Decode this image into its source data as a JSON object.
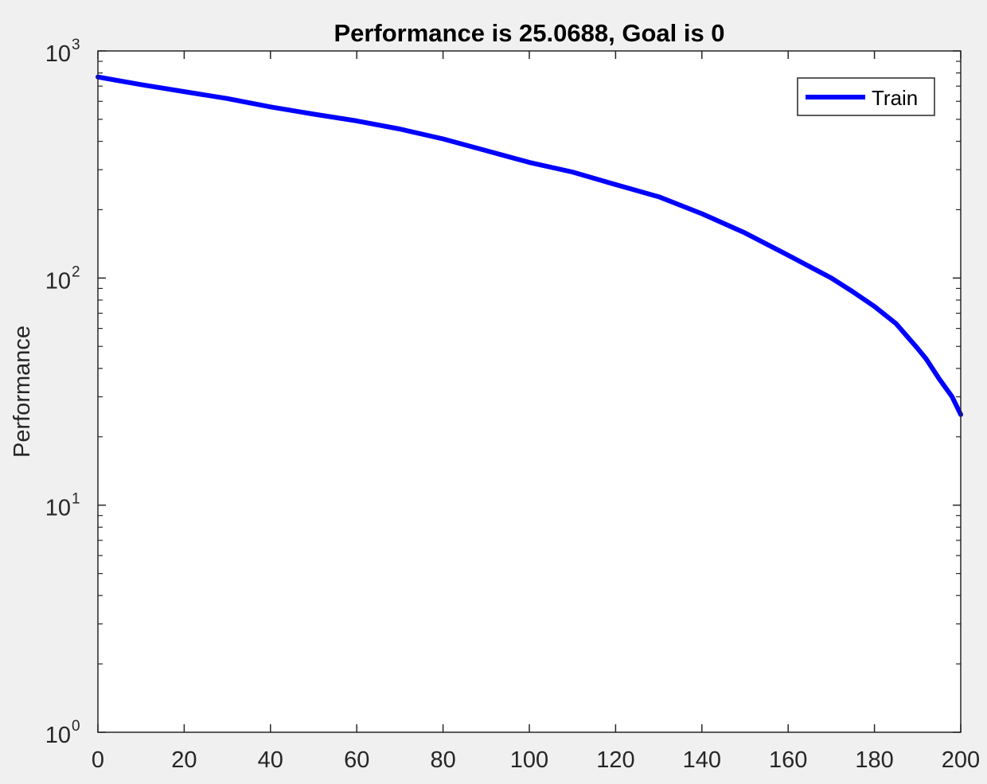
{
  "colors": {
    "background": "#f0f0f0",
    "plot_area": "#ffffff",
    "axis": "#262626",
    "series": "#0000ff"
  },
  "chart_data": {
    "type": "line",
    "title": "Performance is 25.0688, Goal is 0",
    "xlabel": "",
    "ylabel": "Performance",
    "yscale": "log",
    "xlim": [
      0,
      200
    ],
    "ylim": [
      1,
      1000
    ],
    "x_ticks": [
      "0",
      "20",
      "40",
      "60",
      "80",
      "100",
      "120",
      "140",
      "160",
      "180",
      "200"
    ],
    "y_ticks": [
      {
        "base": "10",
        "exp": "0",
        "value": 1
      },
      {
        "base": "10",
        "exp": "1",
        "value": 10
      },
      {
        "base": "10",
        "exp": "2",
        "value": 100
      },
      {
        "base": "10",
        "exp": "3",
        "value": 1000
      }
    ],
    "grid": false,
    "legend": {
      "placement": "top-right",
      "entries": [
        "Train"
      ]
    },
    "series": [
      {
        "name": "Train",
        "color": "#0000ff",
        "x": [
          0,
          10,
          20,
          30,
          40,
          50,
          60,
          70,
          80,
          90,
          100,
          110,
          120,
          130,
          140,
          150,
          160,
          170,
          175,
          180,
          185,
          190,
          192,
          195,
          198,
          200
        ],
        "y": [
          768,
          711,
          662,
          617,
          567,
          527,
          492,
          453,
          410,
          364,
          323,
          293,
          258,
          228,
          192,
          158,
          126,
          100,
          87,
          75,
          63,
          49,
          44,
          36,
          30,
          25.0688
        ]
      }
    ]
  }
}
